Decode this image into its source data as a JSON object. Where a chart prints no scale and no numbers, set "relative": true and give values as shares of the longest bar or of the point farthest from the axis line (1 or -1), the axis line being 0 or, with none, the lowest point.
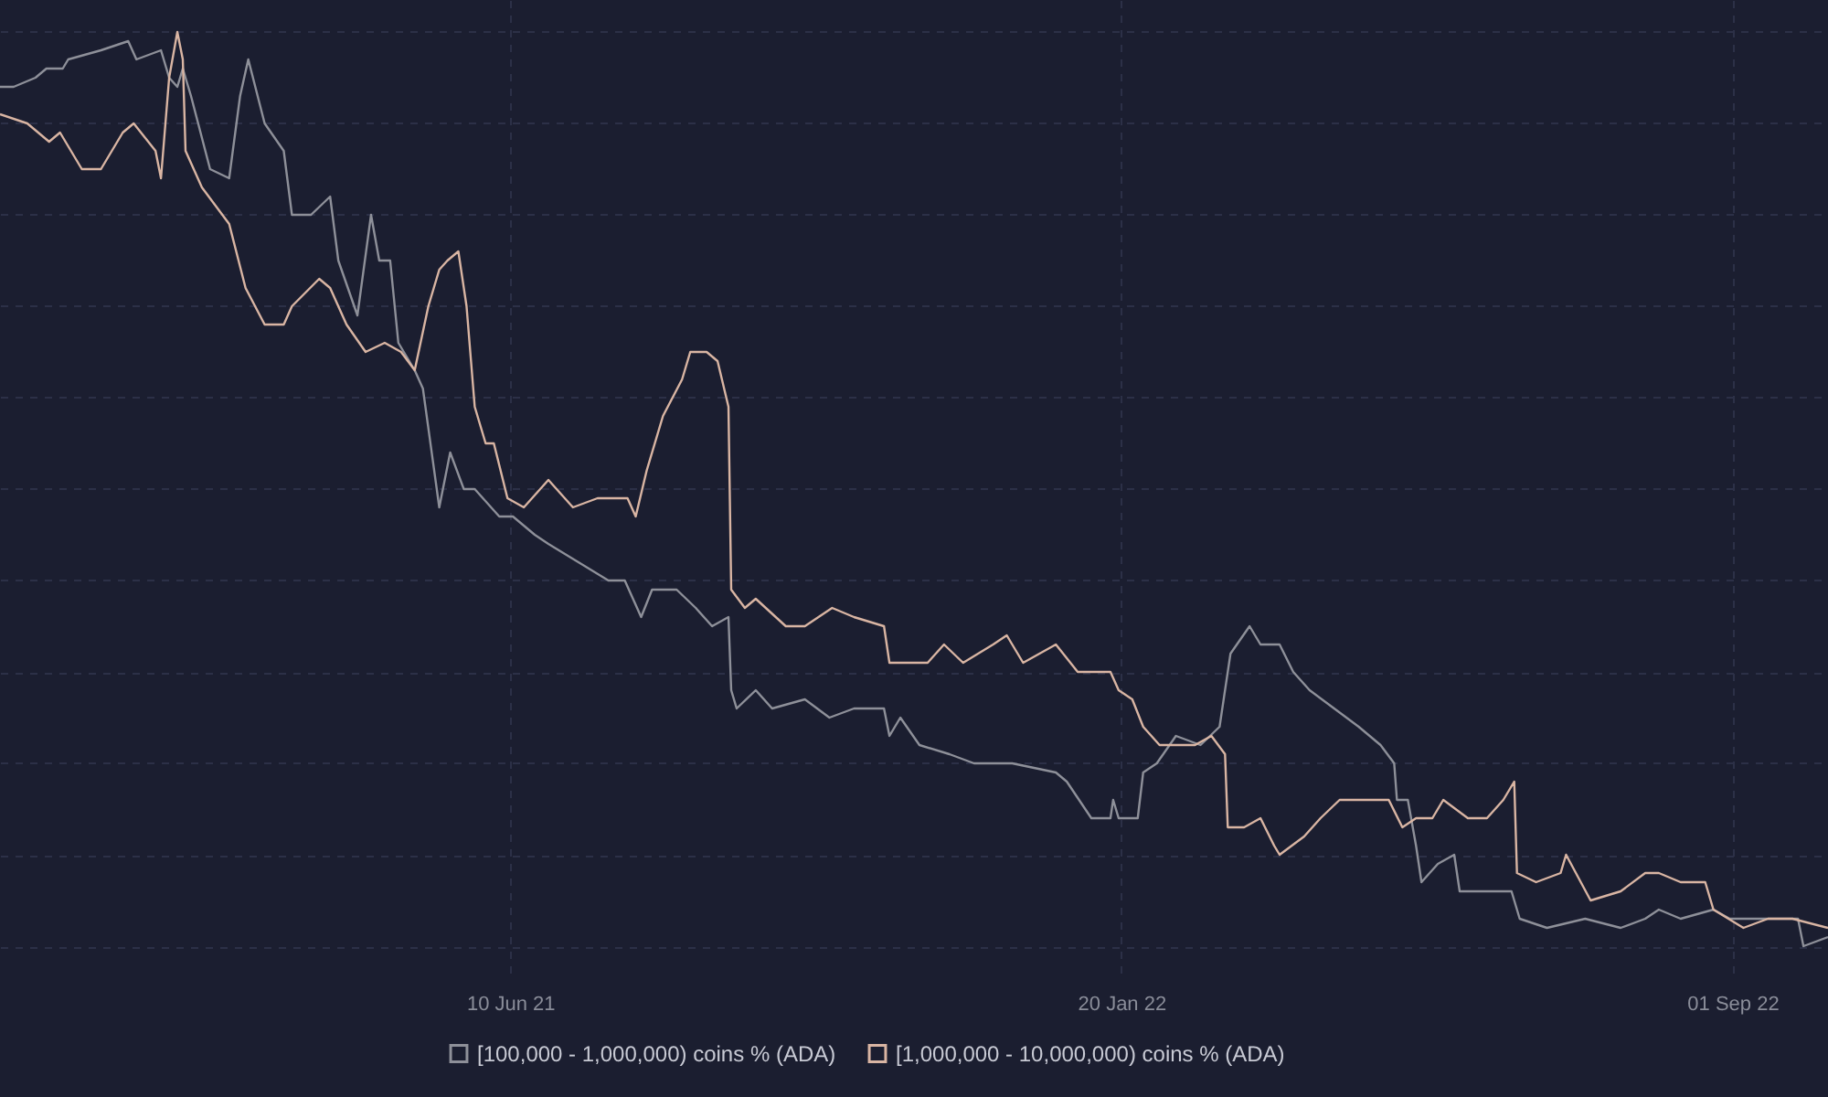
{
  "chart_data": {
    "type": "line",
    "relative": true,
    "grid": true,
    "legend": "bottom",
    "marker": "none",
    "line_style": "solid",
    "xlim": [
      "2020-12-05",
      "2022-10-06"
    ],
    "xticks": [
      {
        "value": "2021-06-10",
        "label": "10 Jun 21"
      },
      {
        "value": "2022-01-20",
        "label": "20 Jan 22"
      },
      {
        "value": "2022-09-01",
        "label": "01 Sep 22"
      }
    ],
    "series": [
      {
        "name": "[100,000 - 1,000,000) coins % (ADA)",
        "color": "#8e9099",
        "x": [
          "2020-12-05",
          "2020-12-10",
          "2020-12-18",
          "2020-12-22",
          "2020-12-28",
          "2020-12-30",
          "2021-01-11",
          "2021-01-21",
          "2021-01-24",
          "2021-02-02",
          "2021-02-05",
          "2021-02-08",
          "2021-02-10",
          "2021-02-13",
          "2021-02-20",
          "2021-02-27",
          "2021-03-03",
          "2021-03-06",
          "2021-03-12",
          "2021-03-19",
          "2021-03-22",
          "2021-03-29",
          "2021-04-05",
          "2021-04-08",
          "2021-04-15",
          "2021-04-20",
          "2021-04-23",
          "2021-04-27",
          "2021-04-30",
          "2021-05-06",
          "2021-05-09",
          "2021-05-15",
          "2021-05-19",
          "2021-05-24",
          "2021-05-28",
          "2021-06-06",
          "2021-06-11",
          "2021-06-19",
          "2021-06-24",
          "2021-07-05",
          "2021-07-16",
          "2021-07-22",
          "2021-07-28",
          "2021-08-01",
          "2021-08-10",
          "2021-08-17",
          "2021-08-23",
          "2021-08-29",
          "2021-08-30",
          "2021-09-01",
          "2021-09-08",
          "2021-09-14",
          "2021-09-26",
          "2021-10-05",
          "2021-10-14",
          "2021-10-25",
          "2021-10-27",
          "2021-10-31",
          "2021-11-07",
          "2021-11-18",
          "2021-11-27",
          "2021-12-11",
          "2021-12-27",
          "2021-12-31",
          "2022-01-09",
          "2022-01-16",
          "2022-01-17",
          "2022-01-19",
          "2022-01-26",
          "2022-01-28",
          "2022-02-02",
          "2022-02-09",
          "2022-02-18",
          "2022-02-25",
          "2022-03-01",
          "2022-03-08",
          "2022-03-12",
          "2022-03-19",
          "2022-03-24",
          "2022-03-30",
          "2022-04-08",
          "2022-04-17",
          "2022-04-25",
          "2022-04-30",
          "2022-05-01",
          "2022-05-05",
          "2022-05-08",
          "2022-05-10",
          "2022-05-16",
          "2022-05-22",
          "2022-05-24",
          "2022-06-01",
          "2022-06-12",
          "2022-06-15",
          "2022-06-25",
          "2022-07-09",
          "2022-07-22",
          "2022-07-31",
          "2022-08-05",
          "2022-08-13",
          "2022-08-25",
          "2022-08-31",
          "2022-09-14",
          "2022-09-25",
          "2022-09-27",
          "2022-10-06"
        ],
        "values": [
          0.94,
          0.94,
          0.95,
          0.96,
          0.96,
          0.97,
          0.98,
          0.99,
          0.97,
          0.98,
          0.95,
          0.94,
          0.96,
          0.93,
          0.85,
          0.84,
          0.93,
          0.97,
          0.9,
          0.87,
          0.8,
          0.8,
          0.82,
          0.75,
          0.69,
          0.8,
          0.75,
          0.75,
          0.66,
          0.63,
          0.61,
          0.48,
          0.54,
          0.5,
          0.5,
          0.47,
          0.47,
          0.45,
          0.44,
          0.42,
          0.4,
          0.4,
          0.36,
          0.39,
          0.39,
          0.37,
          0.35,
          0.36,
          0.28,
          0.26,
          0.28,
          0.26,
          0.27,
          0.25,
          0.26,
          0.26,
          0.23,
          0.25,
          0.22,
          0.21,
          0.2,
          0.2,
          0.19,
          0.18,
          0.14,
          0.14,
          0.16,
          0.14,
          0.14,
          0.19,
          0.2,
          0.23,
          0.22,
          0.24,
          0.32,
          0.35,
          0.33,
          0.33,
          0.3,
          0.28,
          0.26,
          0.24,
          0.22,
          0.2,
          0.16,
          0.16,
          0.11,
          0.07,
          0.09,
          0.1,
          0.06,
          0.06,
          0.06,
          0.03,
          0.02,
          0.03,
          0.02,
          0.03,
          0.04,
          0.03,
          0.04,
          0.03,
          0.03,
          0.03,
          0.0,
          0.01
        ]
      },
      {
        "name": "[1,000,000 - 10,000,000) coins % (ADA)",
        "color": "#d9b5a3",
        "x": [
          "2020-12-05",
          "2020-12-15",
          "2020-12-23",
          "2020-12-27",
          "2021-01-04",
          "2021-01-11",
          "2021-01-19",
          "2021-01-23",
          "2021-01-31",
          "2021-02-02",
          "2021-02-05",
          "2021-02-08",
          "2021-02-10",
          "2021-02-11",
          "2021-02-17",
          "2021-02-27",
          "2021-03-05",
          "2021-03-12",
          "2021-03-19",
          "2021-03-22",
          "2021-04-01",
          "2021-04-05",
          "2021-04-11",
          "2021-04-18",
          "2021-04-25",
          "2021-05-01",
          "2021-05-06",
          "2021-05-11",
          "2021-05-15",
          "2021-05-18",
          "2021-05-22",
          "2021-05-25",
          "2021-05-28",
          "2021-06-01",
          "2021-06-04",
          "2021-06-09",
          "2021-06-15",
          "2021-06-24",
          "2021-07-03",
          "2021-07-12",
          "2021-07-23",
          "2021-07-26",
          "2021-07-30",
          "2021-08-05",
          "2021-08-12",
          "2021-08-15",
          "2021-08-21",
          "2021-08-25",
          "2021-08-29",
          "2021-08-30",
          "2021-09-04",
          "2021-09-08",
          "2021-09-19",
          "2021-09-26",
          "2021-10-06",
          "2021-10-14",
          "2021-10-25",
          "2021-10-27",
          "2021-10-31",
          "2021-11-10",
          "2021-11-16",
          "2021-11-23",
          "2021-12-04",
          "2021-12-09",
          "2021-12-15",
          "2021-12-27",
          "2022-01-04",
          "2022-01-16",
          "2022-01-19",
          "2022-01-24",
          "2022-01-28",
          "2022-02-03",
          "2022-02-09",
          "2022-02-16",
          "2022-02-22",
          "2022-02-27",
          "2022-02-28",
          "2022-03-06",
          "2022-03-12",
          "2022-03-17",
          "2022-03-19",
          "2022-03-28",
          "2022-04-03",
          "2022-04-10",
          "2022-04-22",
          "2022-04-28",
          "2022-05-03",
          "2022-05-08",
          "2022-05-14",
          "2022-05-18",
          "2022-05-27",
          "2022-06-03",
          "2022-06-09",
          "2022-06-13",
          "2022-06-14",
          "2022-06-21",
          "2022-06-30",
          "2022-07-02",
          "2022-07-11",
          "2022-07-22",
          "2022-07-31",
          "2022-08-05",
          "2022-08-13",
          "2022-08-22",
          "2022-08-25",
          "2022-09-05",
          "2022-09-14",
          "2022-09-23",
          "2022-10-06"
        ],
        "values": [
          0.91,
          0.9,
          0.88,
          0.89,
          0.85,
          0.85,
          0.89,
          0.9,
          0.87,
          0.84,
          0.95,
          1.0,
          0.97,
          0.87,
          0.83,
          0.79,
          0.72,
          0.68,
          0.68,
          0.7,
          0.73,
          0.72,
          0.68,
          0.65,
          0.66,
          0.65,
          0.63,
          0.7,
          0.74,
          0.75,
          0.76,
          0.7,
          0.59,
          0.55,
          0.55,
          0.49,
          0.48,
          0.51,
          0.48,
          0.49,
          0.49,
          0.47,
          0.52,
          0.58,
          0.62,
          0.65,
          0.65,
          0.64,
          0.59,
          0.39,
          0.37,
          0.38,
          0.35,
          0.35,
          0.37,
          0.36,
          0.35,
          0.31,
          0.31,
          0.31,
          0.33,
          0.31,
          0.33,
          0.34,
          0.31,
          0.33,
          0.3,
          0.3,
          0.28,
          0.27,
          0.24,
          0.22,
          0.22,
          0.22,
          0.23,
          0.21,
          0.13,
          0.13,
          0.14,
          0.11,
          0.1,
          0.12,
          0.14,
          0.16,
          0.16,
          0.16,
          0.13,
          0.14,
          0.14,
          0.16,
          0.14,
          0.14,
          0.16,
          0.18,
          0.08,
          0.07,
          0.08,
          0.1,
          0.05,
          0.06,
          0.08,
          0.08,
          0.07,
          0.07,
          0.04,
          0.02,
          0.03,
          0.03,
          0.02
        ]
      }
    ]
  }
}
